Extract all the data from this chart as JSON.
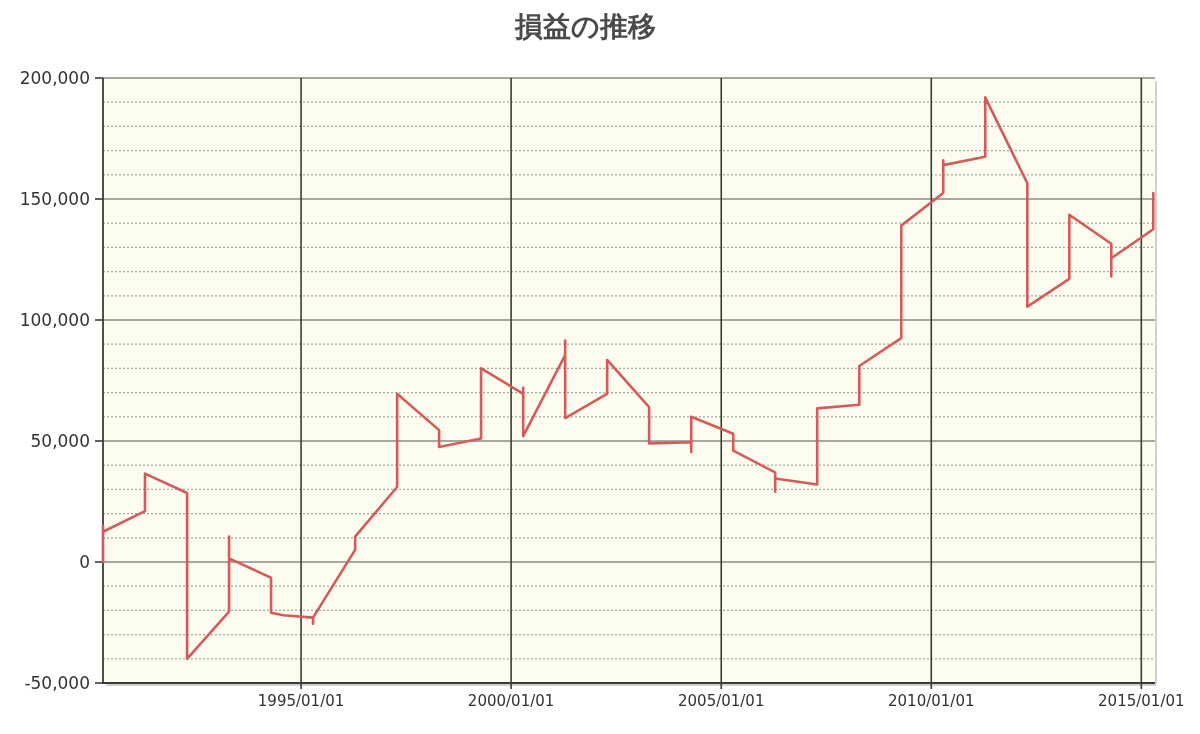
{
  "chart_data": {
    "type": "line",
    "title": "損益の推移",
    "x": [
      "1990-04-15",
      "1990-04-15",
      "1990-04-15",
      "1991-04-15",
      "1991-04-15",
      "1992-04-15",
      "1992-04-15",
      "1993-04-15",
      "1993-04-15",
      "1993-04-15",
      "1994-04-15",
      "1994-04-15",
      "1994-07-31",
      "1995-04-15",
      "1995-04-15",
      "1995-04-15",
      "1996-04-15",
      "1996-04-15",
      "1997-04-15",
      "1997-04-15",
      "1998-04-15",
      "1998-04-15",
      "1999-04-15",
      "1999-04-15",
      "2000-04-15",
      "2000-04-15",
      "2000-04-15",
      "2001-04-15",
      "2001-04-15",
      "2001-04-15",
      "2002-04-15",
      "2002-04-15",
      "2003-04-15",
      "2003-04-15",
      "2004-04-15",
      "2004-04-15",
      "2004-04-15",
      "2005-04-15",
      "2005-04-15",
      "2006-04-15",
      "2006-04-15",
      "2006-04-15",
      "2007-04-15",
      "2007-04-15",
      "2008-04-15",
      "2008-04-15",
      "2009-04-15",
      "2009-04-15",
      "2010-04-15",
      "2010-04-15",
      "2010-04-15",
      "2011-04-15",
      "2011-04-15",
      "2012-04-15",
      "2012-04-15",
      "2013-04-15",
      "2013-04-15",
      "2014-04-15",
      "2014-04-15",
      "2014-04-15",
      "2015-04-15",
      "2015-04-15"
    ],
    "values": [
      0,
      15000,
      12500,
      21000,
      36500,
      28500,
      -40000,
      -20500,
      10500,
      1500,
      -6500,
      -21000,
      -22000,
      -23000,
      -25500,
      -23000,
      5000,
      10500,
      31000,
      69500,
      54500,
      47500,
      51000,
      80000,
      69500,
      72000,
      52000,
      85500,
      91500,
      59500,
      69500,
      83500,
      64000,
      49000,
      49500,
      45500,
      60000,
      53000,
      46000,
      37000,
      29000,
      34500,
      32000,
      63500,
      65000,
      81000,
      92500,
      139000,
      152500,
      166000,
      164000,
      167500,
      192000,
      156500,
      105500,
      117000,
      143500,
      131500,
      118000,
      125500,
      137500,
      152500
    ],
    "color": "#d35b5b",
    "line_style": "solid",
    "xlim": [
      "1990-04-15",
      "2015-04-30"
    ],
    "xticks": [
      {
        "value": "1995-01-01",
        "label": "1995/01/01"
      },
      {
        "value": "2000-01-01",
        "label": "2000/01/01"
      },
      {
        "value": "2005-01-01",
        "label": "2005/01/01"
      },
      {
        "value": "2010-01-01",
        "label": "2010/01/01"
      },
      {
        "value": "2015-01-01",
        "label": "2015/01/01"
      }
    ],
    "ylim": [
      -50000,
      200000
    ],
    "yticks": [
      {
        "value": -50000,
        "label": "-50,000"
      },
      {
        "value": -40000,
        "label": null
      },
      {
        "value": -30000,
        "label": null
      },
      {
        "value": -20000,
        "label": null
      },
      {
        "value": -10000,
        "label": null
      },
      0,
      {
        "value": 10000,
        "label": null
      },
      {
        "value": 20000,
        "label": null
      },
      {
        "value": 30000,
        "label": null
      },
      {
        "value": 40000,
        "label": null
      },
      {
        "value": 50000,
        "label": "50,000"
      },
      {
        "value": 60000,
        "label": null
      },
      {
        "value": 70000,
        "label": null
      },
      {
        "value": 80000,
        "label": null
      },
      {
        "value": 90000,
        "label": null
      },
      {
        "value": 100000,
        "label": "100,000"
      },
      {
        "value": 110000,
        "label": null
      },
      {
        "value": 120000,
        "label": null
      },
      {
        "value": 130000,
        "label": null
      },
      {
        "value": 140000,
        "label": null
      },
      {
        "value": 150000,
        "label": "150,000"
      },
      {
        "value": 160000,
        "label": null
      },
      {
        "value": 170000,
        "label": null
      },
      {
        "value": 180000,
        "label": null
      },
      {
        "value": 190000,
        "label": null
      },
      {
        "value": 200000,
        "label": "200,000"
      }
    ],
    "grid": true
  }
}
